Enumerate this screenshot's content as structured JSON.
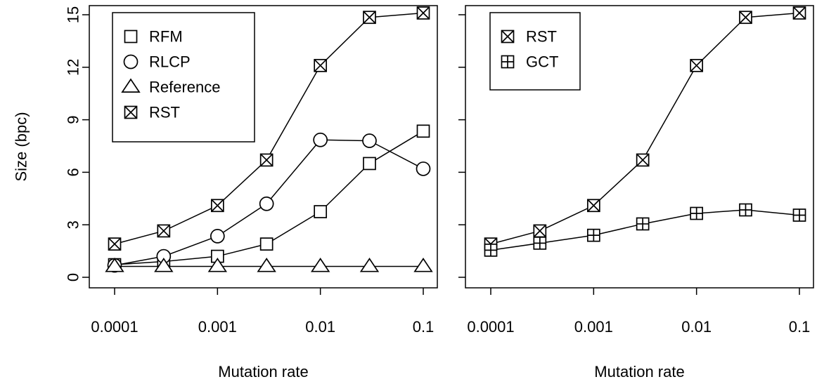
{
  "chart_data": [
    {
      "type": "line",
      "x_scale": "log",
      "x": [
        0.0001,
        0.0003,
        0.001,
        0.003,
        0.01,
        0.03,
        0.1
      ],
      "xtick_values": [
        0.0001,
        0.001,
        0.01,
        0.1
      ],
      "xtick_labels": [
        "0.0001",
        "0.001",
        "0.01",
        "0.1"
      ],
      "xlabel": "Mutation rate",
      "ylabel": "Size (bpc)",
      "ylim": [
        0,
        15
      ],
      "ytick_values": [
        0,
        3,
        6,
        9,
        12,
        15
      ],
      "ytick_labels": [
        "0",
        "3",
        "6",
        "9",
        "12",
        "15"
      ],
      "grid": false,
      "legend_position": "top-left",
      "series": [
        {
          "name": "RFM",
          "marker": "square",
          "values": [
            0.72,
            0.9,
            1.2,
            1.9,
            3.75,
            6.5,
            8.35
          ]
        },
        {
          "name": "RLCP",
          "marker": "circle",
          "values": [
            0.68,
            1.2,
            2.35,
            4.2,
            7.85,
            7.8,
            6.2
          ]
        },
        {
          "name": "Reference",
          "marker": "triangle",
          "values": [
            0.62,
            0.62,
            0.62,
            0.62,
            0.62,
            0.62,
            0.62
          ]
        },
        {
          "name": "RST",
          "marker": "boxx",
          "values": [
            1.9,
            2.65,
            4.1,
            6.7,
            12.1,
            14.85,
            15.1
          ]
        }
      ]
    },
    {
      "type": "line",
      "x_scale": "log",
      "x": [
        0.0001,
        0.0003,
        0.001,
        0.003,
        0.01,
        0.03,
        0.1
      ],
      "xtick_values": [
        0.0001,
        0.001,
        0.01,
        0.1
      ],
      "xtick_labels": [
        "0.0001",
        "0.001",
        "0.01",
        "0.1"
      ],
      "xlabel": "Mutation rate",
      "ylabel": "",
      "ylim": [
        0,
        15
      ],
      "ytick_values": [
        0,
        3,
        6,
        9,
        12,
        15
      ],
      "ytick_labels": [],
      "grid": false,
      "legend_position": "top-left",
      "series": [
        {
          "name": "RST",
          "marker": "boxx",
          "values": [
            1.9,
            2.65,
            4.1,
            6.7,
            12.1,
            14.85,
            15.1
          ]
        },
        {
          "name": "GCT",
          "marker": "boxplus",
          "values": [
            1.55,
            1.95,
            2.4,
            3.05,
            3.65,
            3.85,
            3.55
          ]
        }
      ]
    }
  ]
}
